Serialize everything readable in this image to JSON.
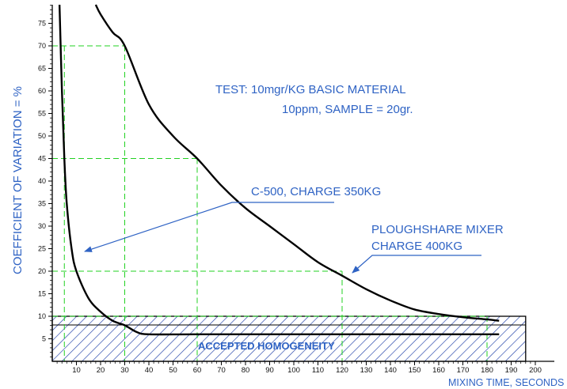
{
  "chart_data": {
    "type": "line",
    "title": "",
    "xlabel": "MIXING TIME, SECONDS",
    "ylabel": "COEFFICIENT OF VARIATION = %",
    "xlim": [
      0,
      200
    ],
    "ylim": [
      0,
      80
    ],
    "x_ticks": [
      10,
      20,
      30,
      40,
      50,
      60,
      70,
      80,
      90,
      100,
      110,
      120,
      130,
      140,
      150,
      160,
      170,
      180,
      190,
      200
    ],
    "y_ticks": [
      5,
      10,
      15,
      20,
      25,
      30,
      35,
      40,
      45,
      50,
      55,
      60,
      65,
      70,
      75
    ],
    "series": [
      {
        "name": "C-500, CHARGE 350KG",
        "points": [
          [
            3,
            80
          ],
          [
            4,
            60
          ],
          [
            5,
            45
          ],
          [
            6,
            35
          ],
          [
            8,
            25
          ],
          [
            10,
            20
          ],
          [
            15,
            14
          ],
          [
            20,
            11
          ],
          [
            25,
            9
          ],
          [
            30,
            8
          ],
          [
            35,
            6.5
          ],
          [
            40,
            6
          ],
          [
            60,
            6
          ],
          [
            100,
            6
          ],
          [
            150,
            6
          ],
          [
            185,
            6
          ]
        ],
        "color": "#000000"
      },
      {
        "name": "PLOUGHSHARE MIXER CHARGE 400KG",
        "points": [
          [
            18,
            80
          ],
          [
            20,
            77
          ],
          [
            25,
            73
          ],
          [
            30,
            70
          ],
          [
            40,
            57
          ],
          [
            50,
            50
          ],
          [
            60,
            45
          ],
          [
            70,
            39
          ],
          [
            80,
            34
          ],
          [
            90,
            30
          ],
          [
            100,
            26
          ],
          [
            110,
            22
          ],
          [
            120,
            19
          ],
          [
            130,
            16
          ],
          [
            140,
            13.5
          ],
          [
            150,
            11.5
          ],
          [
            160,
            10.5
          ],
          [
            170,
            9.8
          ],
          [
            180,
            9.3
          ],
          [
            185,
            9
          ]
        ],
        "color": "#000000"
      }
    ],
    "guides": [
      {
        "x": 5,
        "y": 70
      },
      {
        "x": 30,
        "y": 70
      },
      {
        "x": 60,
        "y": 45
      },
      {
        "x": 120,
        "y": 20
      },
      {
        "x": 180,
        "y": 10
      }
    ],
    "accepted_band": {
      "y_from": 0,
      "y_to": 10,
      "x_from": 0,
      "x_to": 196
    }
  },
  "annotations": {
    "test_line1": "TEST: 10mgr/KG BASIC MATERIAL",
    "test_line2": "10ppm, SAMPLE = 20gr.",
    "c500_label": "C-500, CHARGE 350KG",
    "plough_line1": "PLOUGHSHARE MIXER",
    "plough_line2": "CHARGE 400KG",
    "zone_label": "ACCEPTED HOMOGENEITY"
  }
}
